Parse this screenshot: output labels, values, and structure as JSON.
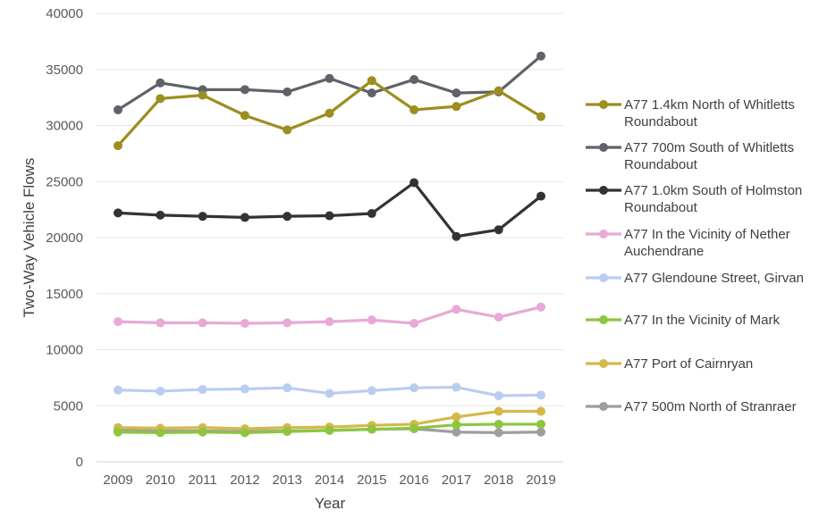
{
  "chart_data": {
    "type": "line",
    "title": "",
    "xlabel": "Year",
    "ylabel": "Two-Way Vehicle Flows",
    "ylim": [
      0,
      40000
    ],
    "yticks": [
      0,
      5000,
      10000,
      15000,
      20000,
      25000,
      30000,
      35000,
      40000
    ],
    "grid": true,
    "legend_position": "right",
    "categories": [
      "2009",
      "2010",
      "2011",
      "2012",
      "2013",
      "2014",
      "2015",
      "2016",
      "2017",
      "2018",
      "2019"
    ],
    "series": [
      {
        "name": "A77 1.4km North of Whitletts Roundabout",
        "label_lines": [
          "A77 1.4km North of Whitletts",
          "Roundabout"
        ],
        "color": "#9C8E1F",
        "values": [
          28200,
          32400,
          32700,
          30900,
          29600,
          31100,
          34000,
          31400,
          31700,
          33100,
          30800
        ]
      },
      {
        "name": "A77 700m South of Whitletts Roundabout",
        "label_lines": [
          "A77 700m South of Whitletts",
          "Roundabout"
        ],
        "color": "#5F6369",
        "values": [
          31400,
          33800,
          33200,
          33200,
          33000,
          34200,
          32900,
          34100,
          32900,
          33000,
          36200
        ]
      },
      {
        "name": "A77 1.0km South of Holmston Roundabout",
        "label_lines": [
          "A77 1.0km South of Holmston",
          "Roundabout"
        ],
        "color": "#333333",
        "values": [
          22200,
          22000,
          21900,
          21800,
          21900,
          21950,
          22150,
          24900,
          20100,
          20700,
          23700
        ]
      },
      {
        "name": "A77 In the Vicinity of Nether Auchendrane",
        "label_lines": [
          "A77 In the Vicinity of Nether",
          "Auchendrane"
        ],
        "color": "#E8A9D6",
        "values": [
          12500,
          12400,
          12400,
          12350,
          12400,
          12500,
          12650,
          12350,
          13600,
          12900,
          13800
        ]
      },
      {
        "name": "A77 Glendoune Street, Girvan",
        "label_lines": [
          "A77 Glendoune Street, Girvan"
        ],
        "color": "#B9CDEF",
        "values": [
          6400,
          6300,
          6450,
          6500,
          6600,
          6100,
          6350,
          6600,
          6650,
          5900,
          5950
        ]
      },
      {
        "name": "A77 In the Vicinity of Mark",
        "label_lines": [
          "A77 In the Vicinity of Mark"
        ],
        "color": "#8CC63F",
        "values": [
          2650,
          2600,
          2650,
          2600,
          2700,
          2800,
          2900,
          3000,
          3300,
          3350,
          3350
        ]
      },
      {
        "name": "A77 Port of Cairnryan",
        "label_lines": [
          "A77 Port of Cairnryan"
        ],
        "color": "#D4B84A",
        "values": [
          3050,
          3000,
          3050,
          2950,
          3050,
          3100,
          3250,
          3350,
          4000,
          4500,
          4500
        ]
      },
      {
        "name": "A77 500m North of Stranraer",
        "label_lines": [
          "A77 500m North of Stranraer"
        ],
        "color": "#9E9E9E",
        "values": [
          2800,
          2750,
          2750,
          2700,
          2750,
          2800,
          2900,
          2950,
          2650,
          2600,
          2650
        ]
      }
    ]
  }
}
